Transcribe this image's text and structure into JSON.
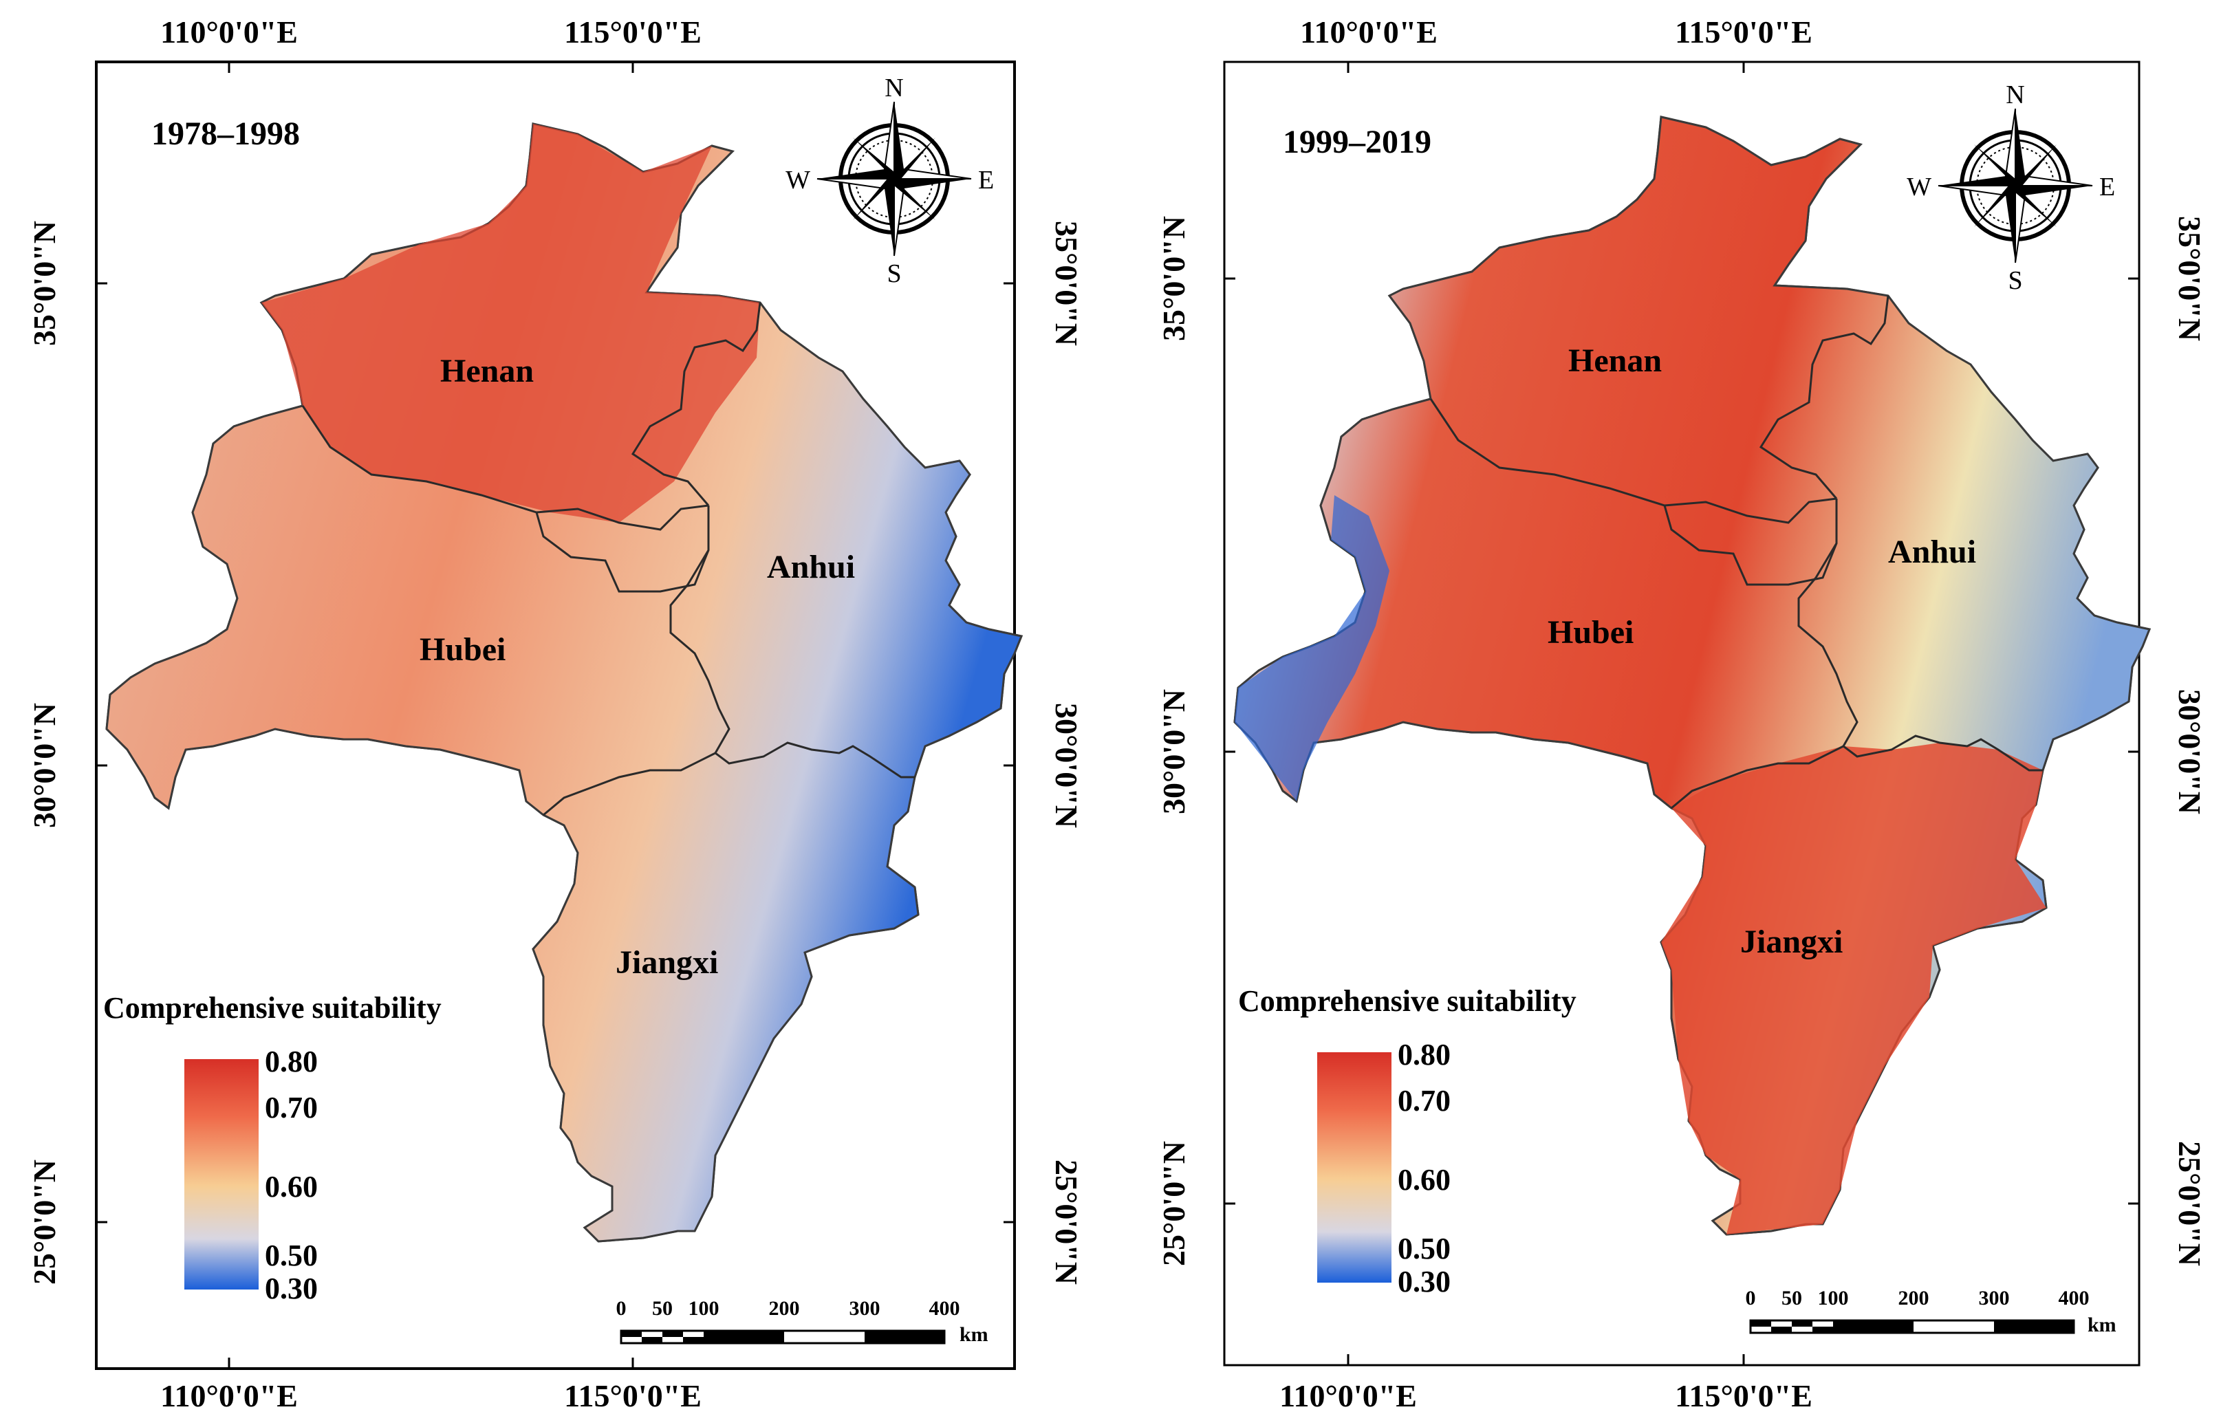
{
  "panels": [
    {
      "period": "1978–1998",
      "lon_labels": [
        "110°0'0\"E",
        "115°0'0\"E"
      ],
      "lat_labels": [
        "35°0'0\"N",
        "30°0'0\"N",
        "25°0'0\"N"
      ],
      "provinces": [
        "Henan",
        "Anhui",
        "Hubei",
        "Jiangxi"
      ],
      "legend": {
        "title": "Comprehensive suitability",
        "values": [
          "0.80",
          "0.70",
          "0.60",
          "0.50",
          "0.30"
        ]
      },
      "scale_bar": {
        "ticks": [
          "0",
          "50",
          "100",
          "200",
          "300",
          "400"
        ],
        "unit": "km"
      },
      "compass": {
        "n": "N",
        "s": "S",
        "e": "E",
        "w": "W"
      }
    },
    {
      "period": "1999–2019",
      "lon_labels": [
        "110°0'0\"E",
        "115°0'0\"E"
      ],
      "lat_labels": [
        "35°0'0\"N",
        "30°0'0\"N",
        "25°0'0\"N"
      ],
      "provinces": [
        "Henan",
        "Anhui",
        "Hubei",
        "Jiangxi"
      ],
      "legend": {
        "title": "Comprehensive suitability",
        "values": [
          "0.80",
          "0.70",
          "0.60",
          "0.50",
          "0.30"
        ]
      },
      "scale_bar": {
        "ticks": [
          "0",
          "50",
          "100",
          "200",
          "300",
          "400"
        ],
        "unit": "km"
      },
      "compass": {
        "n": "N",
        "s": "S",
        "e": "E",
        "w": "W"
      }
    }
  ],
  "colors": {
    "high": "#e34a33",
    "mid": "#f7cf95",
    "low": "#d4d6e3",
    "min": "#1459d6"
  }
}
